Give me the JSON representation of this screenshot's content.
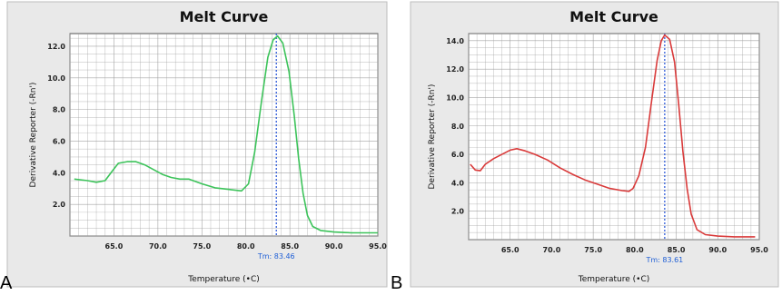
{
  "panels": [
    {
      "letter": "A",
      "line_color": "#3cc35a",
      "tm_label": "Tm: 83.46",
      "chart_data": {
        "type": "line",
        "title": "Melt Curve",
        "xlabel": "Temperature (•C)",
        "ylabel": "Derivative Reporter (-Rn')",
        "xlim": [
          60,
          95
        ],
        "ylim": [
          0,
          12.8
        ],
        "x_ticks": [
          "65.0",
          "70.0",
          "75.0",
          "80.0",
          "85.0",
          "90.0",
          "95.0"
        ],
        "y_ticks": [
          "2.0",
          "4.0",
          "6.0",
          "8.0",
          "10.0",
          "12.0"
        ],
        "grid": true,
        "tm": 83.46,
        "x": [
          60.5,
          62,
          63,
          64,
          64.8,
          65.5,
          66.5,
          67.5,
          68.5,
          69.5,
          70.5,
          71.5,
          72.5,
          73.5,
          75,
          76.5,
          78,
          79.5,
          80.3,
          81,
          81.8,
          82.5,
          83.1,
          83.6,
          84.2,
          84.9,
          85.5,
          86,
          86.5,
          87,
          87.6,
          88.5,
          90,
          92,
          95
        ],
        "y": [
          3.6,
          3.5,
          3.4,
          3.5,
          4.1,
          4.6,
          4.7,
          4.7,
          4.5,
          4.2,
          3.9,
          3.7,
          3.6,
          3.6,
          3.3,
          3.05,
          2.95,
          2.85,
          3.3,
          5.3,
          8.6,
          11.3,
          12.4,
          12.65,
          12.2,
          10.4,
          7.6,
          4.9,
          2.7,
          1.3,
          0.6,
          0.35,
          0.25,
          0.2,
          0.2
        ]
      }
    },
    {
      "letter": "B",
      "line_color": "#d93a3a",
      "tm_label": "Tm: 83.61",
      "chart_data": {
        "type": "line",
        "title": "Melt Curve",
        "xlabel": "Temperature (•C)",
        "ylabel": "Derivative Reporter (-Rn')",
        "xlim": [
          60,
          95
        ],
        "ylim": [
          0,
          14.5
        ],
        "x_ticks": [
          "65.0",
          "70.0",
          "75.0",
          "80.0",
          "85.0",
          "90.0",
          "95.0"
        ],
        "y_ticks": [
          "2.0",
          "4.0",
          "6.0",
          "8.0",
          "10.0",
          "12.0",
          "14.0"
        ],
        "grid": true,
        "tm": 83.61,
        "x": [
          60.2,
          60.8,
          61.4,
          62,
          63,
          64,
          65,
          65.8,
          66.8,
          68,
          69.5,
          71,
          72.5,
          74,
          75.5,
          77,
          78.5,
          79.3,
          79.8,
          80.5,
          81.3,
          82,
          82.7,
          83.2,
          83.6,
          84.2,
          84.8,
          85.3,
          85.8,
          86.3,
          86.8,
          87.5,
          88.5,
          90,
          92,
          94.5
        ],
        "y": [
          5.3,
          4.9,
          4.85,
          5.3,
          5.7,
          6.0,
          6.3,
          6.4,
          6.25,
          6.0,
          5.6,
          5.05,
          4.6,
          4.2,
          3.9,
          3.6,
          3.45,
          3.4,
          3.6,
          4.5,
          6.5,
          9.6,
          12.6,
          14.0,
          14.4,
          14.1,
          12.5,
          9.5,
          6.2,
          3.6,
          1.8,
          0.7,
          0.35,
          0.25,
          0.2,
          0.2
        ]
      }
    }
  ]
}
